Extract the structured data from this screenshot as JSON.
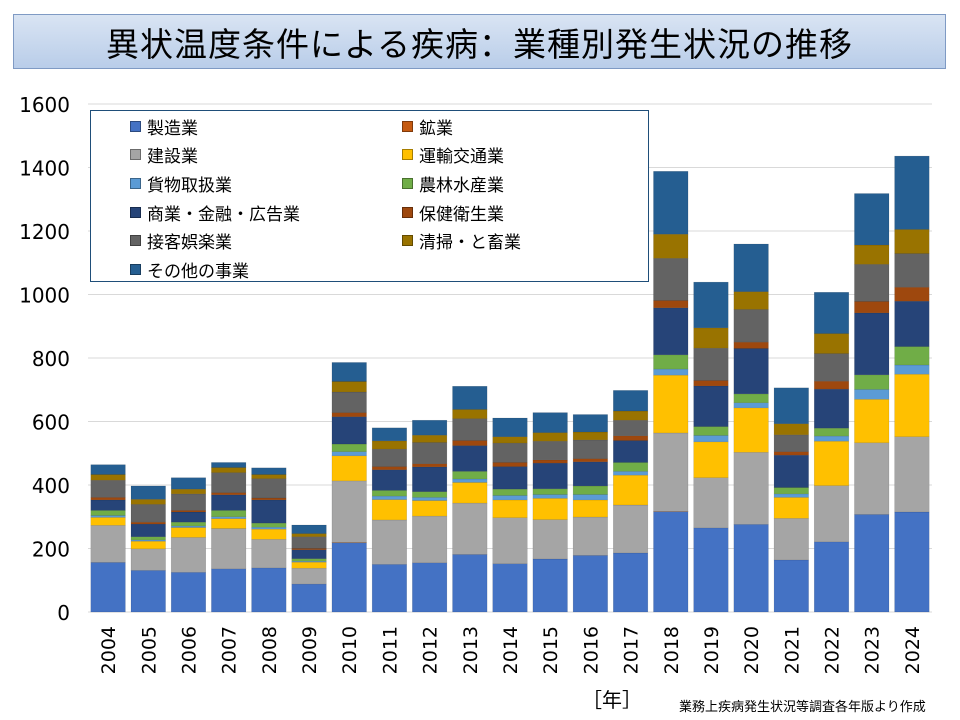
{
  "title": "異状温度条件による疾病：業種別発生状況の推移",
  "x_unit_label": "［年］",
  "source_note": "業務上疾病発生状況等調査各年版より作成",
  "chart_data": {
    "type": "bar",
    "stacked": true,
    "title": "異状温度条件による疾病：業種別発生状況の推移",
    "xlabel": "［年］",
    "ylabel": "",
    "ylim": [
      0,
      1600
    ],
    "yticks": [
      0,
      200,
      400,
      600,
      800,
      1000,
      1200,
      1400,
      1600
    ],
    "grid": true,
    "legend_position": "top-left",
    "categories": [
      "2004",
      "2005",
      "2006",
      "2007",
      "2008",
      "2009",
      "2010",
      "2011",
      "2012",
      "2013",
      "2014",
      "2015",
      "2016",
      "2017",
      "2018",
      "2019",
      "2020",
      "2021",
      "2022",
      "2023",
      "2024"
    ],
    "series": [
      {
        "name": "製造業",
        "color": "#4472c4",
        "values": [
          156,
          131,
          125,
          136,
          139,
          88,
          218,
          150,
          155,
          181,
          152,
          167,
          178,
          186,
          316,
          265,
          276,
          164,
          221,
          307,
          315
        ]
      },
      {
        "name": "鉱業",
        "color": "#c55a11",
        "values": [
          0,
          0,
          0,
          0,
          0,
          0,
          1,
          0,
          0,
          0,
          0,
          0,
          0,
          0,
          1,
          0,
          0,
          0,
          0,
          0,
          0
        ]
      },
      {
        "name": "建設業",
        "color": "#a5a5a5",
        "values": [
          117,
          68,
          110,
          127,
          90,
          50,
          194,
          140,
          147,
          162,
          145,
          124,
          121,
          151,
          247,
          158,
          227,
          131,
          177,
          226,
          237
        ]
      },
      {
        "name": "運輸交通業",
        "color": "#ffc000",
        "values": [
          25,
          24,
          31,
          31,
          32,
          19,
          79,
          64,
          49,
          65,
          56,
          67,
          54,
          94,
          182,
          113,
          140,
          66,
          140,
          137,
          197
        ]
      },
      {
        "name": "貨物取扱業",
        "color": "#5b9bd5",
        "values": [
          6,
          4,
          5,
          6,
          6,
          3,
          13,
          11,
          10,
          11,
          14,
          12,
          17,
          12,
          19,
          20,
          16,
          11,
          16,
          31,
          29
        ]
      },
      {
        "name": "農林水産業",
        "color": "#70ad47",
        "values": [
          16,
          10,
          12,
          20,
          13,
          8,
          24,
          18,
          18,
          24,
          20,
          18,
          27,
          28,
          45,
          28,
          28,
          20,
          25,
          46,
          58
        ]
      },
      {
        "name": "商業・金融・広告業",
        "color": "#264478",
        "values": [
          33,
          40,
          32,
          49,
          73,
          28,
          86,
          65,
          78,
          81,
          71,
          81,
          76,
          69,
          148,
          128,
          143,
          102,
          123,
          195,
          143
        ]
      },
      {
        "name": "保健衛生業",
        "color": "#9e480e",
        "values": [
          8,
          6,
          5,
          7,
          6,
          4,
          13,
          10,
          10,
          16,
          13,
          10,
          10,
          15,
          23,
          17,
          20,
          11,
          25,
          36,
          44
        ]
      },
      {
        "name": "接客娯楽業",
        "color": "#636363",
        "values": [
          54,
          56,
          52,
          63,
          61,
          37,
          65,
          55,
          67,
          69,
          61,
          59,
          59,
          49,
          133,
          102,
          103,
          53,
          87,
          117,
          106
        ]
      },
      {
        "name": "清掃・と畜業",
        "color": "#997300",
        "values": [
          18,
          16,
          15,
          16,
          13,
          10,
          33,
          26,
          23,
          29,
          20,
          27,
          25,
          29,
          76,
          64,
          56,
          35,
          63,
          61,
          76
        ]
      },
      {
        "name": "その他の事業",
        "color": "#255e91",
        "values": [
          31,
          42,
          36,
          16,
          21,
          27,
          60,
          41,
          47,
          73,
          59,
          63,
          55,
          65,
          198,
          144,
          150,
          113,
          130,
          162,
          231
        ]
      }
    ]
  }
}
